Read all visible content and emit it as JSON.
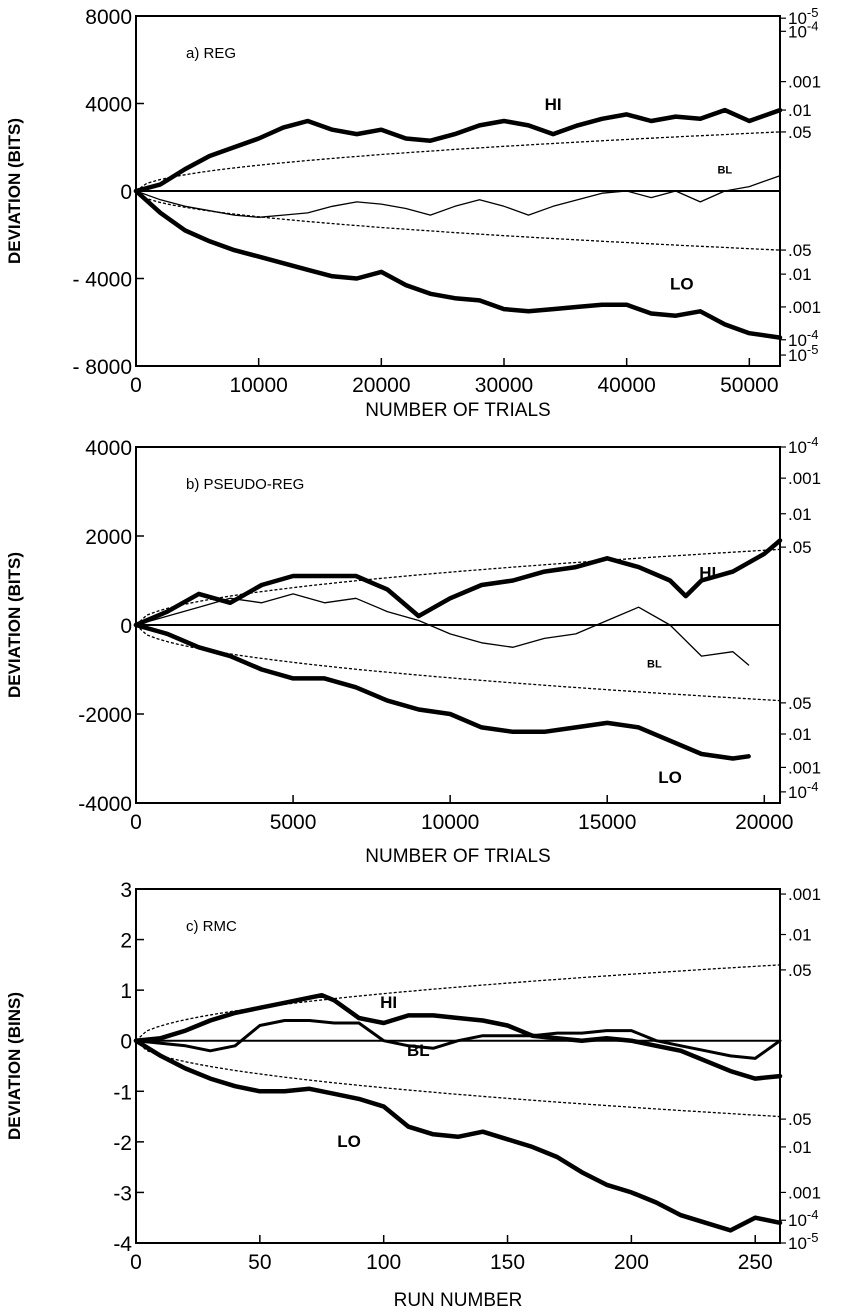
{
  "chart_data": [
    {
      "type": "line",
      "panel_label": "a) REG",
      "xlabel": "NUMBER OF TRIALS",
      "ylabel": "DEVIATION (BITS)",
      "xlim": [
        0,
        52500
      ],
      "ylim": [
        -8000,
        8000
      ],
      "xticks": [
        0,
        10000,
        20000,
        30000,
        40000,
        50000
      ],
      "xtick_labels": [
        "0",
        "10000",
        "20000",
        "30000",
        "40000",
        "50000"
      ],
      "yticks": [
        8000,
        4000,
        0,
        -4000,
        -8000
      ],
      "ytick_labels": [
        "8000",
        "4000",
        "0",
        "- 4000",
        "- 8000"
      ],
      "envelope": {
        "x_end": 52500,
        "y_end": 2700
      },
      "right_labels": [
        {
          "text": "10-5",
          "y": 7900
        },
        {
          "text": "10-4",
          "y": 7300
        },
        {
          "text": ".001",
          "y": 5000
        },
        {
          "text": ".01",
          "y": 3700
        },
        {
          "text": ".05",
          "y": 2700
        },
        {
          "text": ".05",
          "y": -2700
        },
        {
          "text": ".01",
          "y": -3800
        },
        {
          "text": ".001",
          "y": -5300
        },
        {
          "text": "10-4",
          "y": -6800
        },
        {
          "text": "10-5",
          "y": -7500
        }
      ],
      "series": [
        {
          "name": "HI",
          "weight": "bold",
          "label_at": [
            34000,
            3700
          ],
          "x": [
            0,
            2000,
            4000,
            6000,
            8000,
            10000,
            12000,
            14000,
            16000,
            18000,
            20000,
            22000,
            24000,
            26000,
            28000,
            30000,
            32000,
            34000,
            36000,
            38000,
            40000,
            42000,
            44000,
            46000,
            48000,
            50000,
            52500
          ],
          "y": [
            0,
            300,
            1000,
            1600,
            2000,
            2400,
            2900,
            3200,
            2800,
            2600,
            2800,
            2400,
            2300,
            2600,
            3000,
            3200,
            3000,
            2600,
            3000,
            3300,
            3500,
            3200,
            3400,
            3300,
            3700,
            3200,
            3700
          ]
        },
        {
          "name": "BL",
          "weight": "thin",
          "label_at": [
            48000,
            800
          ],
          "x": [
            0,
            2000,
            4000,
            6000,
            8000,
            10000,
            12000,
            14000,
            16000,
            18000,
            20000,
            22000,
            24000,
            26000,
            28000,
            30000,
            32000,
            34000,
            36000,
            38000,
            40000,
            42000,
            44000,
            46000,
            48000,
            50000,
            52500
          ],
          "y": [
            0,
            -400,
            -700,
            -900,
            -1100,
            -1200,
            -1100,
            -1000,
            -700,
            -500,
            -600,
            -800,
            -1100,
            -700,
            -400,
            -700,
            -1100,
            -700,
            -400,
            -100,
            0,
            -300,
            0,
            -500,
            0,
            200,
            700
          ]
        },
        {
          "name": "LO",
          "weight": "bold",
          "label_at": [
            44500,
            -4500
          ],
          "x": [
            0,
            2000,
            4000,
            6000,
            8000,
            10000,
            12000,
            14000,
            16000,
            18000,
            20000,
            22000,
            24000,
            26000,
            28000,
            30000,
            32000,
            34000,
            36000,
            38000,
            40000,
            42000,
            44000,
            46000,
            48000,
            50000,
            52500
          ],
          "y": [
            0,
            -1000,
            -1800,
            -2300,
            -2700,
            -3000,
            -3300,
            -3600,
            -3900,
            -4000,
            -3700,
            -4300,
            -4700,
            -4900,
            -5000,
            -5400,
            -5500,
            -5400,
            -5300,
            -5200,
            -5200,
            -5600,
            -5700,
            -5500,
            -6100,
            -6500,
            -6700
          ]
        }
      ]
    },
    {
      "type": "line",
      "panel_label": "b) PSEUDO-REG",
      "xlabel": "NUMBER OF TRIALS",
      "ylabel": "DEVIATION (BITS)",
      "xlim": [
        0,
        20500
      ],
      "ylim": [
        -4000,
        4000
      ],
      "xticks": [
        0,
        5000,
        10000,
        15000,
        20000
      ],
      "xtick_labels": [
        "0",
        "5000",
        "10000",
        "15000",
        "20000"
      ],
      "yticks": [
        4000,
        2000,
        0,
        -2000,
        -4000
      ],
      "ytick_labels": [
        "4000",
        "2000",
        "0",
        "-2000",
        "-4000"
      ],
      "envelope": {
        "x_end": 20500,
        "y_end": 1700
      },
      "right_labels": [
        {
          "text": "10-4",
          "y": 4000
        },
        {
          "text": ".001",
          "y": 3300
        },
        {
          "text": ".01",
          "y": 2500
        },
        {
          "text": ".05",
          "y": 1750
        },
        {
          "text": ".05",
          "y": -1750
        },
        {
          "text": ".01",
          "y": -2450
        },
        {
          "text": ".001",
          "y": -3200
        },
        {
          "text": "10-4",
          "y": -3750
        }
      ],
      "series": [
        {
          "name": "HI",
          "weight": "bold",
          "label_at": [
            18200,
            1050
          ],
          "x": [
            0,
            1000,
            2000,
            3000,
            4000,
            5000,
            6000,
            7000,
            8000,
            9000,
            10000,
            11000,
            12000,
            13000,
            14000,
            15000,
            16000,
            17000,
            17500,
            18000,
            19000,
            20000,
            20500
          ],
          "y": [
            0,
            300,
            700,
            500,
            900,
            1100,
            1100,
            1100,
            800,
            200,
            600,
            900,
            1000,
            1200,
            1300,
            1500,
            1300,
            1000,
            650,
            1000,
            1200,
            1600,
            1900
          ]
        },
        {
          "name": "BL",
          "weight": "thin",
          "label_at": [
            16500,
            -950
          ],
          "x": [
            0,
            1000,
            2000,
            3000,
            4000,
            5000,
            6000,
            7000,
            8000,
            9000,
            10000,
            11000,
            12000,
            13000,
            14000,
            15000,
            16000,
            17000,
            18000,
            19000,
            19500
          ],
          "y": [
            0,
            200,
            400,
            600,
            500,
            700,
            500,
            600,
            300,
            100,
            -200,
            -400,
            -500,
            -300,
            -200,
            100,
            400,
            0,
            -700,
            -600,
            -900
          ]
        },
        {
          "name": "LO",
          "weight": "bold",
          "label_at": [
            17000,
            -3550
          ],
          "x": [
            0,
            1000,
            2000,
            3000,
            4000,
            5000,
            6000,
            7000,
            8000,
            9000,
            10000,
            11000,
            12000,
            13000,
            14000,
            15000,
            16000,
            17000,
            18000,
            19000,
            19500
          ],
          "y": [
            0,
            -200,
            -500,
            -700,
            -1000,
            -1200,
            -1200,
            -1400,
            -1700,
            -1900,
            -2000,
            -2300,
            -2400,
            -2400,
            -2300,
            -2200,
            -2300,
            -2600,
            -2900,
            -3000,
            -2950
          ]
        }
      ]
    },
    {
      "type": "line",
      "panel_label": "c) RMC",
      "xlabel": "RUN NUMBER",
      "ylabel": "DEVIATION (BINS)",
      "xlim": [
        0,
        260
      ],
      "ylim": [
        -4,
        3
      ],
      "xticks": [
        0,
        50,
        100,
        150,
        200,
        250
      ],
      "xtick_labels": [
        "0",
        "50",
        "100",
        "150",
        "200",
        "250"
      ],
      "yticks": [
        3,
        2,
        1,
        0,
        -1,
        -2,
        -3,
        -4
      ],
      "ytick_labels": [
        "3",
        "2",
        "1",
        "0",
        "-1",
        "-2",
        "-3",
        "-4"
      ],
      "envelope": {
        "x_end": 260,
        "y_end": 1.5
      },
      "right_labels": [
        {
          "text": ".001",
          "y": 2.9
        },
        {
          "text": ".01",
          "y": 2.1
        },
        {
          "text": ".05",
          "y": 1.4
        },
        {
          "text": ".05",
          "y": -1.55
        },
        {
          "text": ".01",
          "y": -2.1
        },
        {
          "text": ".001",
          "y": -3.0
        },
        {
          "text": "10-4",
          "y": -3.55
        },
        {
          "text": "10-5",
          "y": -4.0
        }
      ],
      "series": [
        {
          "name": "HI",
          "weight": "bold",
          "label_at": [
            102,
            0.65
          ],
          "x": [
            0,
            10,
            20,
            30,
            40,
            50,
            60,
            70,
            75,
            80,
            90,
            100,
            110,
            120,
            130,
            140,
            150,
            160,
            170,
            180,
            190,
            200,
            210,
            220,
            230,
            240,
            250,
            260
          ],
          "y": [
            0,
            0.05,
            0.2,
            0.4,
            0.55,
            0.65,
            0.75,
            0.85,
            0.9,
            0.8,
            0.45,
            0.35,
            0.5,
            0.5,
            0.45,
            0.4,
            0.3,
            0.1,
            0.05,
            0.0,
            0.05,
            0.0,
            -0.1,
            -0.2,
            -0.4,
            -0.6,
            -0.75,
            -0.7
          ]
        },
        {
          "name": "BL",
          "weight": "medium",
          "label_at": [
            114,
            -0.3
          ],
          "x": [
            0,
            10,
            20,
            30,
            40,
            50,
            60,
            70,
            80,
            90,
            100,
            110,
            120,
            130,
            140,
            150,
            160,
            170,
            180,
            190,
            200,
            210,
            220,
            230,
            240,
            250,
            260
          ],
          "y": [
            0,
            -0.05,
            -0.1,
            -0.2,
            -0.1,
            0.3,
            0.4,
            0.4,
            0.35,
            0.35,
            0.0,
            -0.1,
            -0.15,
            0.0,
            0.1,
            0.1,
            0.1,
            0.15,
            0.15,
            0.2,
            0.2,
            0.0,
            -0.1,
            -0.2,
            -0.3,
            -0.35,
            0.0
          ]
        },
        {
          "name": "LO",
          "weight": "bold",
          "label_at": [
            86,
            -2.1
          ],
          "x": [
            0,
            10,
            20,
            30,
            40,
            50,
            60,
            70,
            80,
            90,
            100,
            110,
            120,
            130,
            140,
            150,
            160,
            170,
            180,
            190,
            200,
            210,
            220,
            230,
            240,
            250,
            260
          ],
          "y": [
            0,
            -0.3,
            -0.55,
            -0.75,
            -0.9,
            -1.0,
            -1.0,
            -0.95,
            -1.05,
            -1.15,
            -1.3,
            -1.7,
            -1.85,
            -1.9,
            -1.8,
            -1.95,
            -2.1,
            -2.3,
            -2.6,
            -2.85,
            -3.0,
            -3.2,
            -3.45,
            -3.6,
            -3.75,
            -3.5,
            -3.6
          ]
        }
      ]
    }
  ]
}
